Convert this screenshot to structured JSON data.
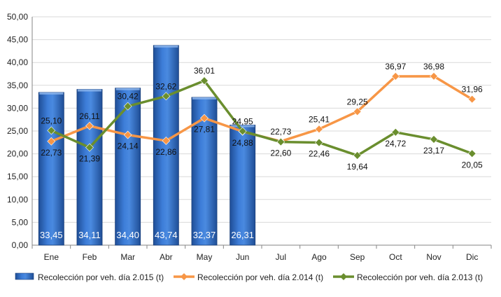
{
  "chart_data": {
    "type": "bar",
    "categories": [
      "Ene",
      "Feb",
      "Mar",
      "Abr",
      "May",
      "Jun",
      "Jul",
      "Ago",
      "Sep",
      "Oct",
      "Nov",
      "Dic"
    ],
    "ylim": [
      0,
      50
    ],
    "yticks": [
      "0,00",
      "5,00",
      "10,00",
      "15,00",
      "20,00",
      "25,00",
      "30,00",
      "35,00",
      "40,00",
      "45,00",
      "50,00"
    ],
    "grid": true,
    "legend_position": "bottom",
    "series": [
      {
        "name": "Recolección por veh. día 2.015 (t)",
        "type": "bar",
        "color": "#2E6CC0",
        "values": [
          33.45,
          34.11,
          34.4,
          43.74,
          32.37,
          26.31,
          null,
          null,
          null,
          null,
          null,
          null
        ],
        "labels": [
          "33,45",
          "34,11",
          "34,40",
          "43,74",
          "32,37",
          "26,31"
        ]
      },
      {
        "name": "Recolección por veh. día 2.014 (t)",
        "type": "line",
        "color": "#F79646",
        "values": [
          22.73,
          26.11,
          24.14,
          22.86,
          27.81,
          24.88,
          22.73,
          25.41,
          29.25,
          36.97,
          36.98,
          31.96
        ],
        "labels": [
          "22,73",
          "26,11",
          "24,14",
          "22,86",
          "27,81",
          "24,88",
          "22,73",
          "25,41",
          "29,25",
          "36,97",
          "36,98",
          "31,96"
        ]
      },
      {
        "name": "Recolección por veh. día 2.013 (t)",
        "type": "line",
        "color": "#6A8E2E",
        "values": [
          25.1,
          21.39,
          30.42,
          32.62,
          36.01,
          24.95,
          22.6,
          22.46,
          19.64,
          24.72,
          23.17,
          20.05
        ],
        "labels": [
          "25,10",
          "21,39",
          "30,42",
          "32,62",
          "36,01",
          "24,95",
          "22,60",
          "22,46",
          "19,64",
          "24,72",
          "23,17",
          "20,05"
        ]
      }
    ]
  }
}
